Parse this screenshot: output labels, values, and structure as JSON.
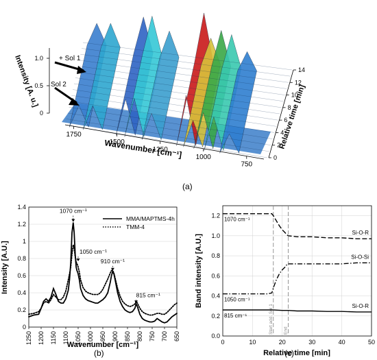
{
  "chart_data": [
    {
      "panel": "(a)",
      "type": "surface",
      "xlabel": "Wavenumber [cm⁻¹]",
      "ylabel": "Relative time [min]",
      "zlabel": "Intensity [A. u.]",
      "x_ticks": [
        "1750",
        "1500",
        "1250",
        "1000",
        "750"
      ],
      "y_ticks": [
        "0",
        "2",
        "4",
        "6",
        "8",
        "10",
        "12",
        "14"
      ],
      "z_ticks": [
        "0",
        "0.5",
        "1.0"
      ],
      "annotations": [
        "+ Sol 1",
        "Sol 2"
      ],
      "ridges": [
        {
          "wavenumber": 1720,
          "height": 0.45
        },
        {
          "wavenumber": 1640,
          "height": 0.5
        },
        {
          "wavenumber": 1450,
          "height": 0.75
        },
        {
          "wavenumber": 1400,
          "height": 0.8
        },
        {
          "wavenumber": 1300,
          "height": 0.55
        },
        {
          "wavenumber": 1100,
          "height": 1.05
        },
        {
          "wavenumber": 1060,
          "height": 0.55
        },
        {
          "wavenumber": 1000,
          "height": 0.75
        },
        {
          "wavenumber": 940,
          "height": 0.7
        },
        {
          "wavenumber": 850,
          "height": 0.4
        }
      ]
    },
    {
      "panel": "(b)",
      "type": "line",
      "xlabel": "Wavenumber [cm⁻¹]",
      "ylabel": "Intensity [A.U.]",
      "xlim": [
        1250,
        650
      ],
      "ylim": [
        0,
        1.4
      ],
      "x_ticks": [
        "1250",
        "1200",
        "1150",
        "1100",
        "1050",
        "1000",
        "950",
        "900",
        "850",
        "800",
        "750",
        "700",
        "650"
      ],
      "y_ticks": [
        "0",
        "0.2",
        "0.4",
        "0.6",
        "0.8",
        "1",
        "1.2",
        "1.4"
      ],
      "annotations": [
        {
          "label": "1070 cm⁻¹",
          "x": 1070,
          "y": 1.22
        },
        {
          "label": "1050 cm⁻¹",
          "x": 1050,
          "y": 0.76
        },
        {
          "label": "910 cm⁻¹",
          "x": 910,
          "y": 0.65
        },
        {
          "label": "815 cm⁻¹",
          "x": 815,
          "y": 0.27
        }
      ],
      "series": [
        {
          "name": "MMA/MAPTMS-4h",
          "style": "solid",
          "x": [
            1250,
            1230,
            1210,
            1200,
            1190,
            1180,
            1170,
            1160,
            1150,
            1140,
            1130,
            1120,
            1110,
            1100,
            1090,
            1085,
            1080,
            1075,
            1070,
            1066,
            1062,
            1058,
            1055,
            1052,
            1050,
            1045,
            1040,
            1030,
            1020,
            1010,
            1000,
            990,
            980,
            970,
            960,
            950,
            940,
            930,
            920,
            915,
            910,
            905,
            900,
            890,
            880,
            870,
            860,
            850,
            840,
            830,
            820,
            815,
            810,
            800,
            790,
            780,
            770,
            760,
            750,
            740,
            730,
            720,
            710,
            700,
            690,
            680,
            670,
            660,
            650
          ],
          "y": [
            0.12,
            0.14,
            0.15,
            0.22,
            0.3,
            0.33,
            0.3,
            0.35,
            0.45,
            0.38,
            0.3,
            0.28,
            0.28,
            0.33,
            0.43,
            0.55,
            0.75,
            1.1,
            1.22,
            1.1,
            0.85,
            0.7,
            0.66,
            0.64,
            0.62,
            0.55,
            0.45,
            0.37,
            0.33,
            0.31,
            0.3,
            0.29,
            0.28,
            0.28,
            0.3,
            0.32,
            0.35,
            0.4,
            0.52,
            0.6,
            0.65,
            0.62,
            0.55,
            0.4,
            0.3,
            0.24,
            0.2,
            0.18,
            0.17,
            0.18,
            0.22,
            0.27,
            0.24,
            0.15,
            0.1,
            0.08,
            0.07,
            0.06,
            0.06,
            0.07,
            0.1,
            0.08,
            0.06,
            0.05,
            0.06,
            0.09,
            0.12,
            0.14,
            0.16
          ]
        },
        {
          "name": "TMM-4",
          "style": "dotted",
          "x": [
            1250,
            1230,
            1210,
            1200,
            1190,
            1180,
            1170,
            1160,
            1150,
            1140,
            1130,
            1120,
            1110,
            1100,
            1090,
            1085,
            1080,
            1075,
            1070,
            1066,
            1062,
            1058,
            1055,
            1052,
            1050,
            1045,
            1040,
            1030,
            1020,
            1010,
            1000,
            990,
            980,
            970,
            960,
            950,
            940,
            930,
            920,
            915,
            910,
            905,
            900,
            890,
            880,
            870,
            860,
            850,
            840,
            830,
            820,
            815,
            810,
            800,
            790,
            780,
            770,
            760,
            750,
            740,
            730,
            720,
            710,
            700,
            690,
            680,
            670,
            660,
            650
          ],
          "y": [
            0.15,
            0.16,
            0.18,
            0.22,
            0.28,
            0.3,
            0.28,
            0.32,
            0.38,
            0.35,
            0.32,
            0.32,
            0.35,
            0.42,
            0.55,
            0.62,
            0.7,
            0.85,
            0.96,
            0.92,
            0.82,
            0.76,
            0.74,
            0.72,
            0.7,
            0.64,
            0.55,
            0.46,
            0.42,
            0.4,
            0.39,
            0.38,
            0.38,
            0.38,
            0.4,
            0.44,
            0.5,
            0.56,
            0.63,
            0.66,
            0.66,
            0.63,
            0.57,
            0.45,
            0.36,
            0.3,
            0.27,
            0.25,
            0.24,
            0.25,
            0.27,
            0.3,
            0.28,
            0.22,
            0.18,
            0.16,
            0.15,
            0.14,
            0.14,
            0.15,
            0.16,
            0.16,
            0.15,
            0.15,
            0.17,
            0.2,
            0.23,
            0.26,
            0.28
          ]
        }
      ]
    },
    {
      "panel": "(c)",
      "type": "line",
      "xlabel": "Relative time [min]",
      "ylabel": "Band intensity [A.U.]",
      "xlim": [
        0,
        50
      ],
      "ylim": [
        0,
        1.3
      ],
      "x_ticks": [
        "0",
        "10",
        "20",
        "30",
        "40",
        "50"
      ],
      "y_ticks": [
        "0.0",
        "0.2",
        "0.4",
        "0.6",
        "0.8",
        "1.0",
        "1.2"
      ],
      "vlines": [
        {
          "x": 17,
          "label": "Start add. Sol 1"
        },
        {
          "x": 22,
          "label": "End"
        }
      ],
      "series": [
        {
          "name": "Si-O-R",
          "annotation": "1070 cm⁻¹",
          "style": "dashed",
          "x": [
            0,
            5,
            10,
            15,
            16.5,
            17,
            18,
            19,
            20,
            21,
            21.5,
            22,
            25,
            30,
            35,
            40,
            45,
            50
          ],
          "y": [
            1.22,
            1.22,
            1.22,
            1.22,
            1.22,
            1.2,
            1.15,
            1.1,
            1.06,
            1.03,
            1.01,
            1.0,
            0.99,
            0.99,
            0.98,
            0.98,
            0.97,
            0.97
          ]
        },
        {
          "name": "Si-O-Si",
          "annotation": "1050 cm⁻¹",
          "style": "dashdot",
          "x": [
            0,
            5,
            10,
            15,
            16.5,
            17,
            18,
            19,
            20,
            21,
            21.5,
            22,
            25,
            30,
            35,
            40,
            45,
            50
          ],
          "y": [
            0.42,
            0.42,
            0.42,
            0.42,
            0.43,
            0.48,
            0.56,
            0.62,
            0.66,
            0.69,
            0.71,
            0.72,
            0.72,
            0.72,
            0.72,
            0.72,
            0.73,
            0.73
          ]
        },
        {
          "name": "Si-O-R",
          "annotation": "815 cm⁻¹",
          "style": "solid",
          "x": [
            0,
            5,
            10,
            15,
            17,
            20,
            22,
            25,
            30,
            35,
            40,
            45,
            50
          ],
          "y": [
            0.26,
            0.26,
            0.26,
            0.26,
            0.26,
            0.255,
            0.255,
            0.25,
            0.25,
            0.245,
            0.245,
            0.24,
            0.24
          ]
        }
      ]
    }
  ],
  "labels": {
    "panel_a": "(a)",
    "panel_b": "(b)",
    "panel_c": "(c)"
  },
  "colors": {
    "surface_low": "#2a5fc0",
    "surface_mid": "#36c8d6",
    "surface_peak": "#c91a1a",
    "surface_green": "#38a848"
  }
}
